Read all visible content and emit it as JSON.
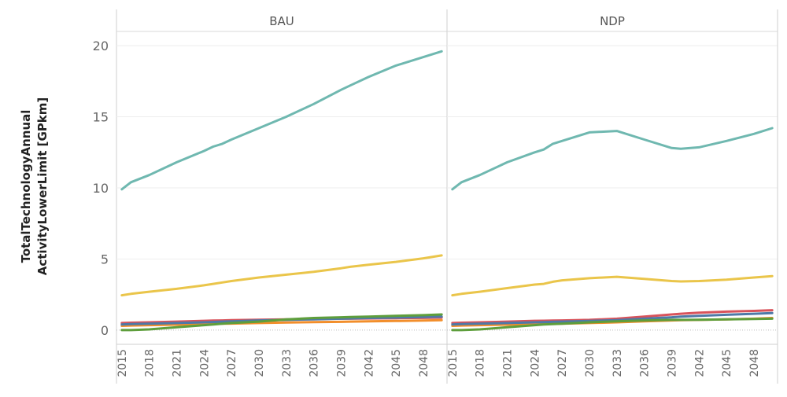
{
  "chart_data": {
    "type": "line",
    "ylabel_lines": [
      "TotalTechnologyAnnual",
      "ActivityLowerLimit [GPkm]"
    ],
    "ylim": [
      -1,
      21
    ],
    "yticks": [
      0,
      5,
      10,
      15,
      20
    ],
    "xlim": [
      2014.5,
      2050.5
    ],
    "xticks": [
      "2015",
      "2018",
      "2021",
      "2024",
      "2027",
      "2030",
      "2033",
      "2036",
      "2039",
      "2042",
      "2045",
      "2048"
    ],
    "grid": true,
    "legend": "none",
    "x": [
      2015,
      2016,
      2018,
      2021,
      2024,
      2025,
      2026,
      2027,
      2030,
      2033,
      2036,
      2039,
      2040,
      2042,
      2045,
      2048,
      2050
    ],
    "panels": [
      {
        "title": "BAU",
        "series": [
          {
            "color": "#6fb8b0",
            "values": [
              9.9,
              10.4,
              10.9,
              11.8,
              12.6,
              12.9,
              13.1,
              13.4,
              14.2,
              15.0,
              15.9,
              16.9,
              17.2,
              17.8,
              18.6,
              19.2,
              19.6
            ]
          },
          {
            "color": "#eac54a",
            "values": [
              2.45,
              2.55,
              2.7,
              2.9,
              3.15,
              3.25,
              3.35,
              3.45,
              3.7,
              3.9,
              4.1,
              4.35,
              4.45,
              4.6,
              4.8,
              5.05,
              5.25
            ]
          },
          {
            "color": "#5e9e3c",
            "values": [
              0.0,
              0.0,
              0.05,
              0.2,
              0.35,
              0.4,
              0.45,
              0.5,
              0.6,
              0.75,
              0.85,
              0.9,
              0.92,
              0.95,
              1.0,
              1.05,
              1.1
            ]
          },
          {
            "color": "#4e79a7",
            "values": [
              0.4,
              0.42,
              0.45,
              0.5,
              0.55,
              0.57,
              0.6,
              0.62,
              0.68,
              0.72,
              0.76,
              0.8,
              0.82,
              0.85,
              0.88,
              0.92,
              0.95
            ]
          },
          {
            "color": "#d8535b",
            "values": [
              0.5,
              0.52,
              0.55,
              0.6,
              0.65,
              0.67,
              0.68,
              0.7,
              0.73,
              0.76,
              0.78,
              0.8,
              0.8,
              0.82,
              0.84,
              0.86,
              0.88
            ]
          },
          {
            "color": "#f28e2b",
            "values": [
              0.3,
              0.32,
              0.35,
              0.38,
              0.42,
              0.44,
              0.45,
              0.46,
              0.5,
              0.53,
              0.56,
              0.58,
              0.6,
              0.62,
              0.64,
              0.67,
              0.7
            ]
          }
        ]
      },
      {
        "title": "NDP",
        "series": [
          {
            "color": "#6fb8b0",
            "values": [
              9.9,
              10.4,
              10.9,
              11.8,
              12.5,
              12.7,
              13.1,
              13.3,
              13.9,
              14.0,
              13.4,
              12.8,
              12.75,
              12.85,
              13.3,
              13.8,
              14.2
            ]
          },
          {
            "color": "#eac54a",
            "values": [
              2.45,
              2.55,
              2.7,
              2.95,
              3.2,
              3.25,
              3.4,
              3.5,
              3.65,
              3.75,
              3.6,
              3.45,
              3.42,
              3.45,
              3.55,
              3.7,
              3.8
            ]
          },
          {
            "color": "#5e9e3c",
            "values": [
              0.0,
              0.0,
              0.05,
              0.2,
              0.35,
              0.4,
              0.42,
              0.45,
              0.55,
              0.62,
              0.68,
              0.72,
              0.72,
              0.73,
              0.75,
              0.78,
              0.8
            ]
          },
          {
            "color": "#4e79a7",
            "values": [
              0.4,
              0.42,
              0.45,
              0.5,
              0.55,
              0.56,
              0.58,
              0.6,
              0.64,
              0.7,
              0.8,
              0.9,
              0.95,
              1.0,
              1.08,
              1.15,
              1.2
            ]
          },
          {
            "color": "#d8535b",
            "values": [
              0.5,
              0.52,
              0.55,
              0.6,
              0.65,
              0.66,
              0.67,
              0.68,
              0.72,
              0.8,
              0.95,
              1.1,
              1.15,
              1.22,
              1.3,
              1.35,
              1.4
            ]
          },
          {
            "color": "#f28e2b",
            "values": [
              0.3,
              0.32,
              0.35,
              0.38,
              0.42,
              0.43,
              0.44,
              0.45,
              0.5,
              0.55,
              0.62,
              0.68,
              0.7,
              0.72,
              0.75,
              0.8,
              0.85
            ]
          }
        ]
      }
    ]
  }
}
